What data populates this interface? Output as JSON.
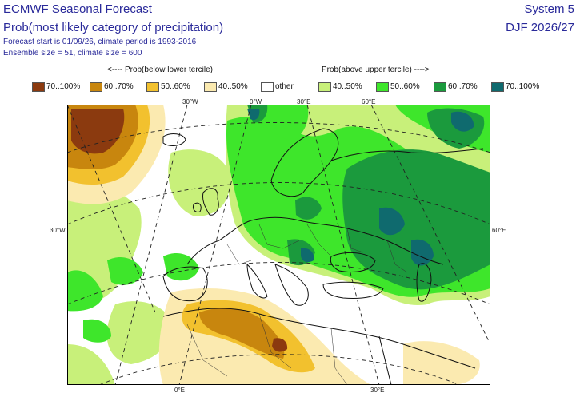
{
  "header": {
    "title": "ECMWF Seasonal Forecast",
    "subtitle": "Prob(most likely category of precipitation)",
    "info_line1": "Forecast start is 01/09/26, climate period is 1993-2016",
    "info_line2": "Ensemble size = 51, climate size = 600",
    "system": "System 5",
    "season": "DJF 2026/27"
  },
  "legend": {
    "below_label": "<---- Prob(below lower tercile)",
    "above_label": "Prob(above upper tercile) ---->",
    "items": [
      {
        "label": "70..100%",
        "color": "#8b3a0f"
      },
      {
        "label": "60..70%",
        "color": "#c8860e"
      },
      {
        "label": "50..60%",
        "color": "#f2c12e"
      },
      {
        "label": "40..50%",
        "color": "#fbeab0"
      },
      {
        "label": "other",
        "color": "#ffffff"
      },
      {
        "label": "40..50%",
        "color": "#c8f07a"
      },
      {
        "label": "50..60%",
        "color": "#3ee62b"
      },
      {
        "label": "60..70%",
        "color": "#1b9a3d"
      },
      {
        "label": "70..100%",
        "color": "#0f6a6e"
      }
    ]
  },
  "map": {
    "projection": "polar-stereographic",
    "gridline_labels": {
      "top_30w": "30°W",
      "top_0w": "0°W",
      "top_30e": "30°E",
      "top_60e": "60°E",
      "left_30w": "30°W",
      "right_60e": "60°E",
      "bottom_0e": "0°E",
      "bottom_30e": "30°E"
    }
  }
}
